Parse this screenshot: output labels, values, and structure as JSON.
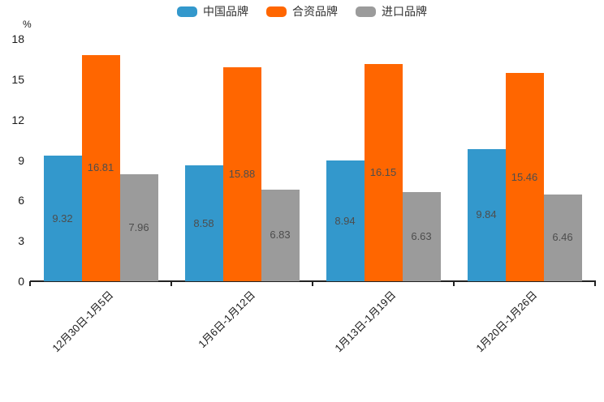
{
  "chart_data": {
    "type": "bar",
    "title": "",
    "unit_label": "%",
    "categories": [
      "12月30日-1月5日",
      "1月6日-1月12日",
      "1月13日-1月19日",
      "1月20日-1月26日"
    ],
    "series": [
      {
        "name": "中国品牌",
        "color": "#3398CC",
        "values": [
          9.32,
          8.58,
          8.94,
          9.84
        ]
      },
      {
        "name": "合资品牌",
        "color": "#FF6600",
        "values": [
          16.81,
          15.88,
          16.15,
          15.46
        ]
      },
      {
        "name": "进口品牌",
        "color": "#9B9B9B",
        "values": [
          7.96,
          6.83,
          6.63,
          6.46
        ]
      }
    ],
    "ylim": [
      0,
      18
    ],
    "yticks": [
      0,
      3,
      6,
      9,
      12,
      15,
      18
    ],
    "value_label_decimals": 2,
    "legend_position": "top",
    "grid": false
  }
}
